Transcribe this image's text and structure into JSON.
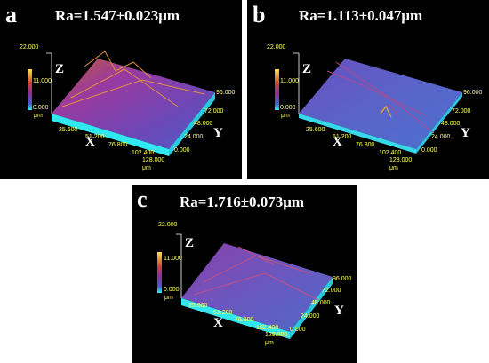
{
  "panels": [
    {
      "letter": "a",
      "ra": "Ra=1.547±0.023μm",
      "z_ticks": [
        "22.000",
        "11.000",
        "0.000"
      ],
      "z_unit": "μm",
      "x_ticks": [
        "25.600",
        "51.200",
        "76.800",
        "102.400",
        "128.000"
      ],
      "y_ticks": [
        "96.000",
        "72.000",
        "48.000",
        "24.000",
        "0.000"
      ],
      "x_unit": "μm",
      "axis_x": "X",
      "axis_y": "Y",
      "axis_z": "Z"
    },
    {
      "letter": "b",
      "ra": "Ra=1.113±0.047μm",
      "z_ticks": [
        "22.000",
        "11.000",
        "0.000"
      ],
      "z_unit": "μm",
      "x_ticks": [
        "25.600",
        "51.200",
        "76.800",
        "102.400",
        "128.000"
      ],
      "y_ticks": [
        "96.000",
        "72.000",
        "48.000",
        "24.000",
        "0.000"
      ],
      "x_unit": "μm",
      "axis_x": "X",
      "axis_y": "Y",
      "axis_z": "Z"
    },
    {
      "letter": "c",
      "ra": "Ra=1.716±0.073μm",
      "z_ticks": [
        "22.000",
        "11.000",
        "0.000"
      ],
      "z_unit": "μm",
      "x_ticks": [
        "25.600",
        "51.200",
        "76.800",
        "102.400",
        "128.000"
      ],
      "y_ticks": [
        "96.000",
        "72.000",
        "48.000",
        "24.000",
        "0.000"
      ],
      "x_unit": "μm",
      "axis_x": "X",
      "axis_y": "Y",
      "axis_z": "Z"
    }
  ],
  "colors": {
    "background": "#000000",
    "tick_text": "#ffff66",
    "colormap_high": "#ffd21e",
    "colormap_mid": "#a0279a",
    "colormap_low": "#3c64c8",
    "colormap_base": "#28f0f0"
  }
}
